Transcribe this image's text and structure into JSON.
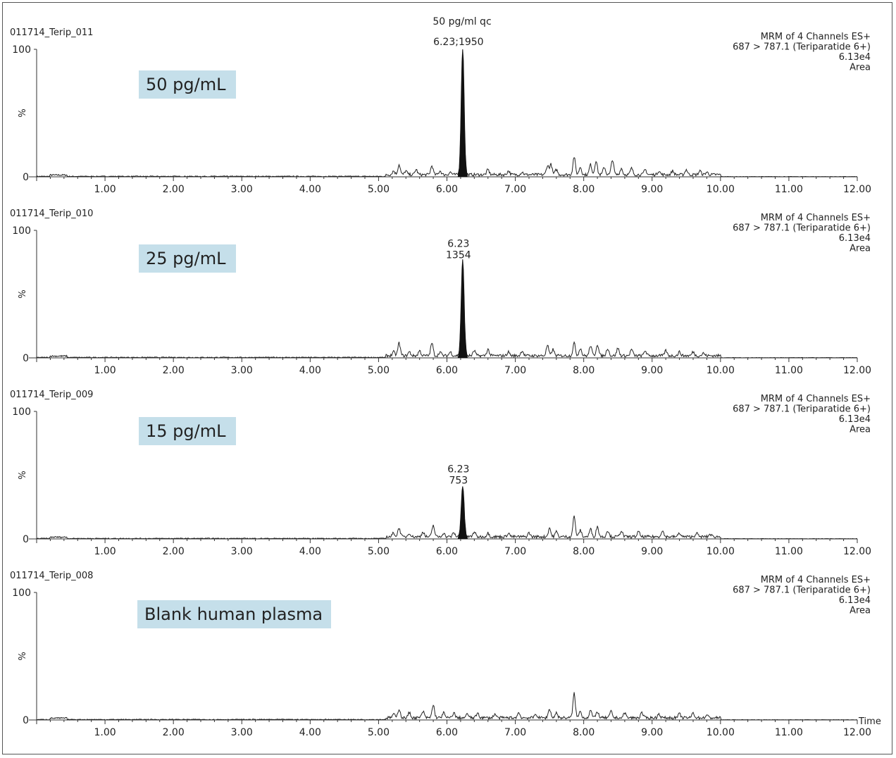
{
  "header": {
    "qc_title": "50 pg/ml qc"
  },
  "chart_data": [
    {
      "type": "line",
      "sample_id": "011714_Terip_011",
      "concentration_label": "50 pg/mL",
      "channel_info": [
        "MRM of 4 Channels ES+",
        "687 > 787.1 (Teriparatide 6+)",
        "6.13e4",
        "Area"
      ],
      "peak": {
        "rt": 6.23,
        "area": 1950,
        "height": 100,
        "label_lines": [
          "6.23;1950"
        ]
      },
      "ylabel": "%",
      "y_ticks": [
        "100",
        "%",
        "0"
      ],
      "ylim": [
        0,
        100
      ],
      "xlim": [
        0,
        12
      ],
      "x_ticks": [
        "1.00",
        "2.00",
        "3.00",
        "4.00",
        "5.00",
        "6.00",
        "7.00",
        "8.00",
        "9.00",
        "10.00",
        "11.00",
        "12.00"
      ],
      "xlabel": "",
      "noise": [
        [
          5.22,
          3
        ],
        [
          5.3,
          8
        ],
        [
          5.4,
          3
        ],
        [
          5.55,
          4
        ],
        [
          5.78,
          7
        ],
        [
          5.9,
          3
        ],
        [
          6.05,
          2
        ],
        [
          6.6,
          4
        ],
        [
          6.9,
          3
        ],
        [
          7.1,
          2
        ],
        [
          7.47,
          7
        ],
        [
          7.52,
          8
        ],
        [
          7.6,
          4
        ],
        [
          7.86,
          14
        ],
        [
          7.95,
          6
        ],
        [
          8.1,
          8
        ],
        [
          8.18,
          11
        ],
        [
          8.3,
          6
        ],
        [
          8.42,
          12
        ],
        [
          8.55,
          5
        ],
        [
          8.7,
          5
        ],
        [
          8.9,
          4
        ],
        [
          9.1,
          3
        ],
        [
          9.3,
          3
        ],
        [
          9.5,
          4
        ],
        [
          9.7,
          3
        ],
        [
          9.8,
          2
        ]
      ]
    },
    {
      "type": "line",
      "sample_id": "011714_Terip_010",
      "concentration_label": "25 pg/mL",
      "channel_info": [
        "MRM of 4 Channels ES+",
        "687 > 787.1 (Teriparatide 6+)",
        "6.13e4",
        "Area"
      ],
      "peak": {
        "rt": 6.23,
        "area": 1354,
        "height": 75,
        "label_lines": [
          "6.23",
          "1354"
        ]
      },
      "ylabel": "%",
      "y_ticks": [
        "100",
        "%",
        "0"
      ],
      "ylim": [
        0,
        100
      ],
      "xlim": [
        0,
        12
      ],
      "x_ticks": [
        "1.00",
        "2.00",
        "3.00",
        "4.00",
        "5.00",
        "6.00",
        "7.00",
        "8.00",
        "9.00",
        "10.00",
        "11.00",
        "12.00"
      ],
      "xlabel": "",
      "noise": [
        [
          5.22,
          3
        ],
        [
          5.3,
          10
        ],
        [
          5.45,
          3
        ],
        [
          5.6,
          4
        ],
        [
          5.78,
          10
        ],
        [
          5.9,
          3
        ],
        [
          6.05,
          3
        ],
        [
          6.4,
          4
        ],
        [
          6.6,
          5
        ],
        [
          6.9,
          3
        ],
        [
          7.1,
          4
        ],
        [
          7.47,
          8
        ],
        [
          7.55,
          5
        ],
        [
          7.86,
          10
        ],
        [
          7.95,
          6
        ],
        [
          8.1,
          8
        ],
        [
          8.2,
          9
        ],
        [
          8.35,
          6
        ],
        [
          8.5,
          6
        ],
        [
          8.7,
          5
        ],
        [
          8.9,
          4
        ],
        [
          9.2,
          4
        ],
        [
          9.4,
          3
        ],
        [
          9.6,
          3
        ],
        [
          9.75,
          2
        ]
      ]
    },
    {
      "type": "line",
      "sample_id": "011714_Terip_009",
      "concentration_label": "15 pg/mL",
      "channel_info": [
        "MRM of 4 Channels ES+",
        "687 > 787.1 (Teriparatide 6+)",
        "6.13e4",
        "Area"
      ],
      "peak": {
        "rt": 6.23,
        "area": 753,
        "height": 40,
        "label_lines": [
          "6.23",
          "753"
        ]
      },
      "ylabel": "%",
      "y_ticks": [
        "100",
        "%",
        "0"
      ],
      "ylim": [
        0,
        100
      ],
      "xlim": [
        0,
        12
      ],
      "x_ticks": [
        "1.00",
        "2.00",
        "3.00",
        "4.00",
        "5.00",
        "6.00",
        "7.00",
        "8.00",
        "9.00",
        "10.00",
        "11.00",
        "12.00"
      ],
      "xlabel": "",
      "noise": [
        [
          5.22,
          3
        ],
        [
          5.3,
          7
        ],
        [
          5.45,
          3
        ],
        [
          5.65,
          4
        ],
        [
          5.8,
          9
        ],
        [
          5.95,
          3
        ],
        [
          6.1,
          3
        ],
        [
          6.4,
          4
        ],
        [
          6.6,
          3
        ],
        [
          6.9,
          3
        ],
        [
          7.2,
          3
        ],
        [
          7.5,
          7
        ],
        [
          7.6,
          4
        ],
        [
          7.86,
          16
        ],
        [
          7.95,
          5
        ],
        [
          8.1,
          6
        ],
        [
          8.2,
          8
        ],
        [
          8.35,
          5
        ],
        [
          8.55,
          5
        ],
        [
          8.8,
          4
        ],
        [
          9.15,
          5
        ],
        [
          9.4,
          3
        ],
        [
          9.65,
          3
        ],
        [
          9.85,
          2
        ]
      ]
    },
    {
      "type": "line",
      "sample_id": "011714_Terip_008",
      "concentration_label": "Blank human plasma",
      "channel_info": [
        "MRM of 4 Channels ES+",
        "687 > 787.1 (Teriparatide 6+)",
        "6.13e4",
        "Area"
      ],
      "peak": null,
      "ylabel": "%",
      "y_ticks": [
        "100",
        "%",
        "0"
      ],
      "ylim": [
        0,
        100
      ],
      "xlim": [
        0,
        12
      ],
      "x_ticks": [
        "1.00",
        "2.00",
        "3.00",
        "4.00",
        "5.00",
        "6.00",
        "7.00",
        "8.00",
        "9.00",
        "10.00",
        "11.00",
        "12.00"
      ],
      "xlabel": "Time",
      "noise": [
        [
          5.22,
          3
        ],
        [
          5.3,
          7
        ],
        [
          5.45,
          4
        ],
        [
          5.65,
          5
        ],
        [
          5.8,
          10
        ],
        [
          5.95,
          4
        ],
        [
          6.1,
          4
        ],
        [
          6.3,
          3
        ],
        [
          6.45,
          4
        ],
        [
          6.7,
          3
        ],
        [
          7.05,
          4
        ],
        [
          7.3,
          3
        ],
        [
          7.5,
          7
        ],
        [
          7.6,
          4
        ],
        [
          7.86,
          19
        ],
        [
          7.95,
          5
        ],
        [
          8.1,
          6
        ],
        [
          8.2,
          5
        ],
        [
          8.4,
          5
        ],
        [
          8.6,
          4
        ],
        [
          8.85,
          4
        ],
        [
          9.1,
          3
        ],
        [
          9.4,
          3
        ],
        [
          9.6,
          4
        ],
        [
          9.8,
          2
        ]
      ]
    }
  ]
}
